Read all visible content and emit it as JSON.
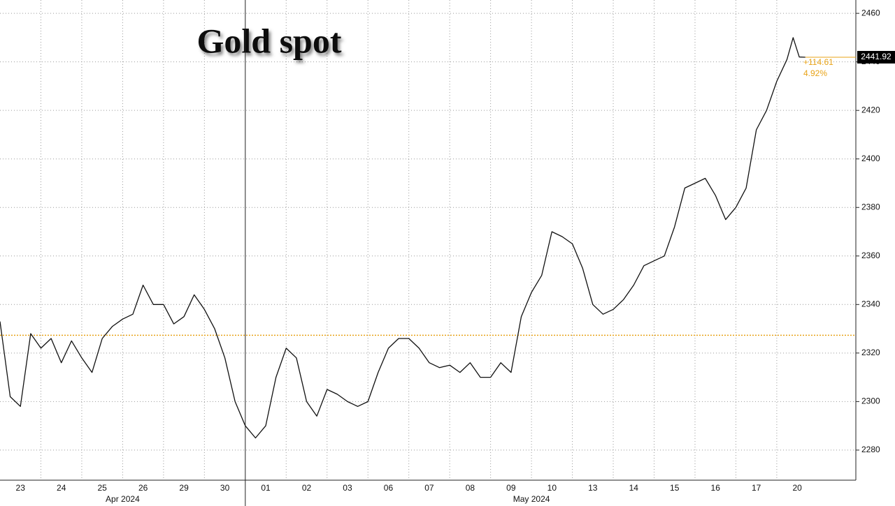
{
  "chart_data": {
    "type": "line",
    "title": "Gold spot",
    "x": [
      0,
      0.25,
      0.5,
      0.75,
      1,
      1.25,
      1.5,
      1.75,
      2,
      2.25,
      2.5,
      2.75,
      3,
      3.25,
      3.5,
      3.75,
      4,
      4.25,
      4.5,
      4.75,
      5,
      5.25,
      5.5,
      5.75,
      6,
      6.25,
      6.5,
      6.75,
      7,
      7.25,
      7.5,
      7.75,
      8,
      8.25,
      8.5,
      8.75,
      9,
      9.25,
      9.5,
      9.75,
      10,
      10.25,
      10.5,
      10.75,
      11,
      11.25,
      11.5,
      11.75,
      12,
      12.25,
      12.5,
      12.75,
      13,
      13.25,
      13.5,
      13.75,
      14,
      14.25,
      14.5,
      14.75,
      15,
      15.25,
      15.5,
      15.75,
      16,
      16.25,
      16.5,
      16.75,
      17,
      17.25,
      17.5,
      17.75,
      18,
      18.25,
      18.5,
      18.75,
      19,
      19.25,
      19.4,
      19.55,
      19.7
    ],
    "series": [
      {
        "name": "Gold spot",
        "color": "#111111",
        "values": [
          2333,
          2302,
          2298,
          2328,
          2322,
          2326,
          2316,
          2325,
          2318,
          2312,
          2326,
          2331,
          2334,
          2336,
          2348,
          2340,
          2340,
          2332,
          2335,
          2344,
          2338,
          2330,
          2318,
          2300,
          2290,
          2285,
          2290,
          2310,
          2322,
          2318,
          2300,
          2294,
          2305,
          2303,
          2300,
          2298,
          2300,
          2312,
          2322,
          2326,
          2326,
          2322,
          2316,
          2314,
          2315,
          2312,
          2316,
          2310,
          2310,
          2316,
          2312,
          2335,
          2345,
          2352,
          2370,
          2368,
          2365,
          2355,
          2340,
          2336,
          2338,
          2342,
          2348,
          2356,
          2358,
          2360,
          2372,
          2388,
          2390,
          2392,
          2385,
          2375,
          2380,
          2388,
          2412,
          2420,
          2432,
          2441,
          2450,
          2442,
          2441.92
        ]
      }
    ],
    "reference_line": {
      "value": 2327.31,
      "color": "#e8a317"
    },
    "last_value_label": "2441.92",
    "annotations": [
      "+114.61",
      "4.92%"
    ],
    "xlim": [
      0,
      20.9
    ],
    "xticks": [
      {
        "value": 0.5,
        "label": "23"
      },
      {
        "value": 1.5,
        "label": "24"
      },
      {
        "value": 2.5,
        "label": "25"
      },
      {
        "value": 3.5,
        "label": "26"
      },
      {
        "value": 4.5,
        "label": "29"
      },
      {
        "value": 5.5,
        "label": "30"
      },
      {
        "value": 6.5,
        "label": "01"
      },
      {
        "value": 7.5,
        "label": "02"
      },
      {
        "value": 8.5,
        "label": "03"
      },
      {
        "value": 9.5,
        "label": "06"
      },
      {
        "value": 10.5,
        "label": "07"
      },
      {
        "value": 11.5,
        "label": "08"
      },
      {
        "value": 12.5,
        "label": "09"
      },
      {
        "value": 13.5,
        "label": "10"
      },
      {
        "value": 14.5,
        "label": "13"
      },
      {
        "value": 15.5,
        "label": "14"
      },
      {
        "value": 16.5,
        "label": "15"
      },
      {
        "value": 17.5,
        "label": "16"
      },
      {
        "value": 18.5,
        "label": "17"
      },
      {
        "value": 19.5,
        "label": "20"
      }
    ],
    "months": [
      {
        "value": 3,
        "label": "Apr 2024"
      },
      {
        "value": 13,
        "label": "May 2024"
      }
    ],
    "ylim": [
      2267.6,
      2465.5
    ],
    "yticks": [
      2280,
      2300,
      2320,
      2340,
      2360,
      2380,
      2400,
      2420,
      2440,
      2460
    ],
    "grid": true
  }
}
